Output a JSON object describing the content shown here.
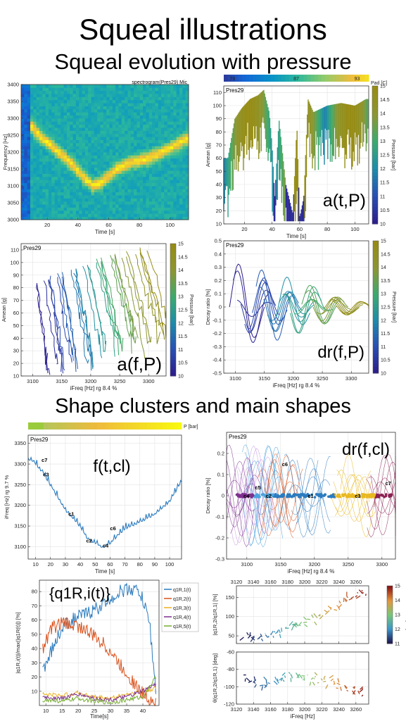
{
  "titles": {
    "main": "Squeal illustrations",
    "section1": "Squeal evolution with pressure",
    "section2": "Shape clusters and main shapes"
  },
  "chart_data": [
    {
      "id": "p1",
      "type": "heatmap",
      "title": "spectrogram(Pres29) Mic",
      "xlabel": "Time [s]",
      "ylabel": "Frequency [Hz]",
      "xlim": [
        3,
        112
      ],
      "ylim": [
        3000,
        3400
      ],
      "xticks": [
        20,
        40,
        60,
        80,
        100
      ],
      "yticks": [
        3000,
        3050,
        3100,
        3150,
        3200,
        3250,
        3300,
        3350,
        3400
      ],
      "ridge": {
        "x": [
          5,
          15,
          25,
          35,
          45,
          50,
          55,
          65,
          75,
          85,
          95,
          105,
          110
        ],
        "y": [
          3300,
          3250,
          3210,
          3170,
          3120,
          3100,
          3110,
          3150,
          3170,
          3180,
          3200,
          3225,
          3240
        ]
      }
    },
    {
      "id": "p2",
      "type": "line",
      "label": "Pres29",
      "annotation": "a(t,P)",
      "xlabel": "Time [s]",
      "ylabel": "Amean [g]",
      "xlim": [
        5,
        110
      ],
      "ylim": [
        10,
        115
      ],
      "xticks": [
        20,
        40,
        60,
        80,
        100
      ],
      "yticks": [
        10,
        20,
        30,
        40,
        50,
        60,
        70,
        80,
        90,
        100,
        110
      ],
      "colorbar": {
        "label": "Pressure [bar]",
        "ticks": [
          10,
          10.5,
          11,
          11.5,
          12,
          12.5,
          13,
          13.5,
          14,
          14.5,
          15
        ]
      },
      "top_colorbar": {
        "label": "Pad [C]",
        "ticks": [
          "78",
          "87",
          "93"
        ]
      },
      "series": [
        {
          "name": "",
          "x": [
            8,
            13,
            18,
            24,
            30,
            34,
            38,
            40,
            42,
            45,
            50,
            55,
            58,
            60,
            63,
            66,
            70,
            80,
            90,
            100,
            108
          ],
          "y": [
            60,
            90,
            98,
            105,
            108,
            112,
            95,
            70,
            30,
            90,
            40,
            18,
            85,
            15,
            30,
            105,
            95,
            100,
            102,
            100,
            105
          ]
        }
      ]
    },
    {
      "id": "p3",
      "type": "line",
      "label": "Pres29",
      "annotation": "a(f,P)",
      "xlabel": "iFreq [Hz] rg 8.4 %",
      "ylabel": "Amean [g]",
      "xlim": [
        3080,
        3330
      ],
      "ylim": [
        10,
        115
      ],
      "xticks": [
        3100,
        3150,
        3200,
        3250,
        3300
      ],
      "yticks": [
        10,
        20,
        30,
        40,
        50,
        60,
        70,
        80,
        90,
        100,
        110
      ],
      "colorbar": {
        "label": "Pressure [bar]",
        "ticks": [
          10,
          10.5,
          11,
          11.5,
          12,
          12.5,
          13,
          13.5,
          14,
          14.5,
          15
        ]
      }
    },
    {
      "id": "p4",
      "type": "line",
      "label": "Pres29",
      "annotation": "dr(f,P)",
      "xlabel": "iFreq [Hz] rg 8.4 %",
      "ylabel": "Decay ratio [%]",
      "xlim": [
        3080,
        3330
      ],
      "ylim": [
        -0.5,
        0.5
      ],
      "xticks": [
        3100,
        3150,
        3200,
        3250,
        3300
      ],
      "yticks": [
        -0.5,
        -0.4,
        -0.3,
        -0.2,
        -0.1,
        0,
        0.1,
        0.2,
        0.3,
        0.4,
        0.5
      ],
      "colorbar": {
        "label": "Pressure [bar]",
        "ticks": [
          10,
          10.5,
          11,
          11.5,
          12,
          12.5,
          13,
          13.5,
          14,
          14.5,
          15
        ]
      }
    },
    {
      "id": "p5",
      "type": "line",
      "label": "Pres29",
      "annotation": "f(t,cl)",
      "xlabel": "Time [s]",
      "ylabel": "iFreq [Hz] rg 9.7 %",
      "xlim": [
        5,
        108
      ],
      "ylim": [
        3070,
        3370
      ],
      "xticks": [
        10,
        20,
        30,
        40,
        50,
        60,
        70,
        80,
        90,
        100
      ],
      "yticks": [
        3100,
        3150,
        3200,
        3250,
        3300,
        3350
      ],
      "colorbar": {
        "label": "P [bar]"
      },
      "cluster_labels": [
        {
          "t": "c7",
          "x": 14,
          "y": 3305
        },
        {
          "t": "c3",
          "x": 15,
          "y": 3270
        },
        {
          "t": "c1",
          "x": 32,
          "y": 3175
        },
        {
          "t": "c2",
          "x": 44,
          "y": 3110
        },
        {
          "t": "c6",
          "x": 60,
          "y": 3140
        },
        {
          "t": "c4",
          "x": 55,
          "y": 3098
        }
      ],
      "series": [
        {
          "name": "",
          "x": [
            8,
            15,
            20,
            30,
            40,
            45,
            50,
            55,
            60,
            70,
            80,
            90,
            100,
            108
          ],
          "y": [
            3310,
            3280,
            3250,
            3190,
            3150,
            3120,
            3110,
            3100,
            3110,
            3145,
            3160,
            3180,
            3210,
            3260
          ]
        }
      ]
    },
    {
      "id": "p6",
      "type": "scatter",
      "label": "Pres29",
      "annotation": "dr(f,cl)",
      "xlabel": "iFreq [Hz] rg 8.4 %",
      "ylabel": "Decay ratio [%]",
      "xlim": [
        3070,
        3320
      ],
      "ylim": [
        -0.3,
        0.3
      ],
      "xticks": [
        3100,
        3150,
        3200,
        3250,
        3300
      ],
      "yticks": [
        -0.3,
        -0.2,
        -0.1,
        0,
        0.1,
        0.2
      ],
      "cluster_labels": [
        {
          "t": "c6",
          "x": 3152,
          "y": 0.15
        },
        {
          "t": "c5",
          "x": 3112,
          "y": 0.04
        },
        {
          "t": "c4",
          "x": 3095,
          "y": 0.0
        },
        {
          "t": "c2",
          "x": 3128,
          "y": 0.0
        },
        {
          "t": "c1",
          "x": 3190,
          "y": 0.0
        },
        {
          "t": "c3",
          "x": 3260,
          "y": 0.0
        },
        {
          "t": "c7",
          "x": 3305,
          "y": 0.06
        }
      ]
    },
    {
      "id": "p7",
      "type": "line",
      "annotation": "{q1R,i(t)}",
      "xlabel": "Time[s]",
      "ylabel": "|q1R,i(t)|/max(|q1R(t)|) [%]",
      "xlim": [
        8,
        45
      ],
      "ylim": [
        0,
        88
      ],
      "xticks": [
        10,
        15,
        20,
        25,
        30,
        35,
        40
      ],
      "yticks": [
        10,
        20,
        30,
        40,
        50,
        60,
        70,
        80
      ],
      "legend": [
        "q1R,1(t)",
        "q1R,2(t)",
        "q1R,3(t)",
        "q1R,4(t)",
        "q1R,5(t)"
      ],
      "series": [
        {
          "name": "q1R,1(t)",
          "color": "#2b7bbf",
          "x": [
            9,
            12,
            15,
            18,
            21,
            24,
            27,
            30,
            33,
            36,
            39,
            42,
            44
          ],
          "y": [
            25,
            40,
            55,
            60,
            63,
            66,
            70,
            75,
            80,
            82,
            80,
            60,
            10
          ]
        },
        {
          "name": "q1R,2(t)",
          "color": "#d9531e",
          "x": [
            9,
            12,
            15,
            18,
            21,
            24,
            27,
            30,
            33,
            36,
            39,
            42,
            44
          ],
          "y": [
            40,
            55,
            58,
            57,
            55,
            50,
            45,
            38,
            28,
            20,
            10,
            5,
            2
          ]
        },
        {
          "name": "q1R,3(t)",
          "color": "#edb120",
          "x": [
            9,
            15,
            20,
            25,
            30,
            35,
            40,
            44
          ],
          "y": [
            8,
            7,
            9,
            6,
            5,
            8,
            10,
            12
          ]
        },
        {
          "name": "q1R,4(t)",
          "color": "#7e2f8e",
          "x": [
            9,
            15,
            20,
            25,
            30,
            35,
            40,
            44
          ],
          "y": [
            6,
            5,
            8,
            5,
            4,
            6,
            10,
            15
          ]
        },
        {
          "name": "q1R,5(t)",
          "color": "#77ac30",
          "x": [
            9,
            15,
            20,
            25,
            30,
            35,
            40,
            44
          ],
          "y": [
            4,
            3,
            5,
            3,
            2,
            4,
            6,
            20
          ]
        }
      ]
    },
    {
      "id": "p8",
      "type": "line",
      "xlabel": "",
      "ylabel": "|q1R,2/q1R,1| [%]",
      "xlim": [
        3120,
        3275
      ],
      "ylim": [
        30,
        180
      ],
      "xticks": [
        3120,
        3140,
        3160,
        3180,
        3200,
        3220,
        3240,
        3260
      ],
      "yticks": [
        50,
        100,
        150
      ],
      "colorbar": {
        "label": "Pressure [bar]",
        "ticks": [
          11,
          12,
          13,
          14,
          15
        ]
      },
      "series": [
        {
          "name": "",
          "x": [
            3130,
            3150,
            3170,
            3190,
            3210,
            3230,
            3250,
            3265
          ],
          "y": [
            45,
            50,
            60,
            75,
            95,
            120,
            145,
            160
          ]
        }
      ]
    },
    {
      "id": "p9",
      "type": "line",
      "xlabel": "iFreq [Hz]",
      "ylabel": "θ(q1R,2/q1R,1) [deg]",
      "xlim": [
        3120,
        3275
      ],
      "ylim": [
        -120,
        -60
      ],
      "xticks": [
        3120,
        3140,
        3160,
        3180,
        3200,
        3220,
        3240,
        3260
      ],
      "yticks": [
        -120,
        -100,
        -80,
        -60
      ],
      "series": [
        {
          "name": "",
          "x": [
            3130,
            3150,
            3170,
            3190,
            3210,
            3230,
            3250,
            3265
          ],
          "y": [
            -90,
            -95,
            -92,
            -88,
            -90,
            -95,
            -100,
            -105
          ]
        }
      ]
    }
  ]
}
